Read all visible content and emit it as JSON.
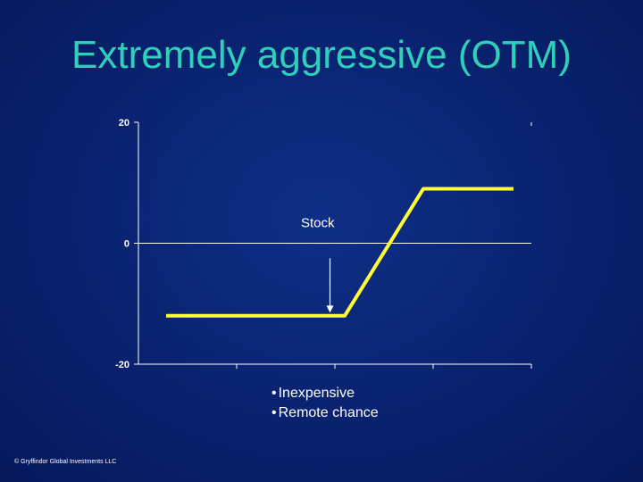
{
  "slide": {
    "title": "Extremely aggressive (OTM)",
    "bullets": [
      "Inexpensive",
      "Remote chance"
    ],
    "footer": "© Gryffindor Global Investments LLC"
  },
  "colors": {
    "title": "#2fd0b8",
    "line": "#ffff33",
    "axis": "#ffffff",
    "text": "#ffffff"
  },
  "chart_data": {
    "type": "line",
    "title": "",
    "xlabel": "",
    "ylabel": "",
    "ylim": [
      -20,
      20
    ],
    "xlim": [
      0,
      4
    ],
    "yticks": [
      {
        "value": 20,
        "label": "20"
      },
      {
        "value": 0,
        "label": "0"
      },
      {
        "value": -20,
        "label": "-20"
      }
    ],
    "xticks": [
      1,
      2,
      3
    ],
    "grid": false,
    "legend": "none",
    "series": [
      {
        "x": [
          0.3,
          2.1,
          2.9,
          3.8
        ],
        "y": [
          -12,
          -12,
          9,
          9
        ]
      }
    ],
    "annotations": [
      {
        "text": "Stock",
        "arrow_x": 1.95,
        "arrow_y_from": -1,
        "arrow_y_to": -11.5
      }
    ]
  }
}
